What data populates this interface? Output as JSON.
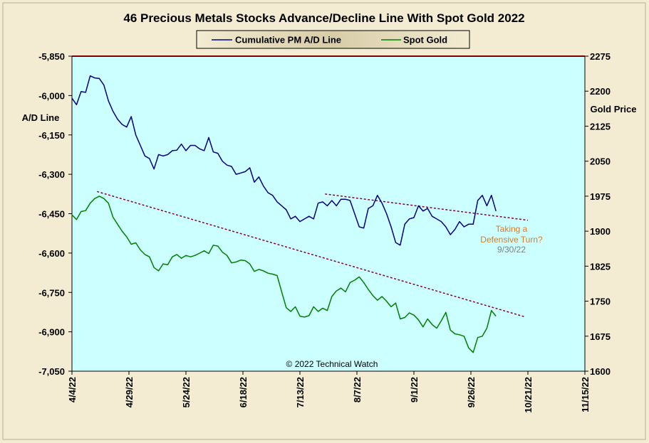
{
  "chart_data": {
    "type": "line",
    "title": "46 Precious Metals Stocks Advance/Decline Line With Spot Gold 2022",
    "ylabel_left": "A/D Line",
    "ylabel_right": "Gold Price",
    "legend": {
      "placement": "top-center",
      "entries": [
        "Cumulative PM A/D Line",
        "Spot Gold"
      ]
    },
    "x_ticks": [
      "4/4/22",
      "4/29/22",
      "5/24/22",
      "6/18/22",
      "7/13/22",
      "8/7/22",
      "9/1/22",
      "9/26/22",
      "10/21/22",
      "11/15/22"
    ],
    "x_range": [
      "4/4/22",
      "11/15/22"
    ],
    "y_left": {
      "min": -7050,
      "max": -5850,
      "ticks": [
        -5850,
        -6000,
        -6150,
        -6300,
        -6450,
        -6600,
        -6750,
        -6900,
        -7050
      ],
      "tick_labels": [
        "-5,850",
        "-6,000",
        "-6,150",
        "-6,300",
        "-6,450",
        "-6,600",
        "-6,750",
        "-6,900",
        "-7,050"
      ]
    },
    "y_right": {
      "min": 1600,
      "max": 2275,
      "ticks": [
        1600,
        1675,
        1750,
        1825,
        1900,
        1975,
        2050,
        2125,
        2200,
        2275
      ]
    },
    "grid": false,
    "colors": {
      "plot_bg": "#ccffff",
      "ad_line": "#000080",
      "gold": "#008000",
      "trend": "#800040",
      "annotation": "#e07820",
      "annotation_date": "#808080",
      "top_line": "#800000"
    },
    "series": [
      {
        "name": "Cumulative PM A/D Line",
        "axis": "left",
        "x": [
          "4/4/22",
          "4/6/22",
          "4/8/22",
          "4/10/22",
          "4/12/22",
          "4/14/22",
          "4/16/22",
          "4/18/22",
          "4/20/22",
          "4/22/22",
          "4/24/22",
          "4/26/22",
          "4/28/22",
          "4/30/22",
          "5/2/22",
          "5/4/22",
          "5/6/22",
          "5/8/22",
          "5/10/22",
          "5/12/22",
          "5/14/22",
          "5/16/22",
          "5/18/22",
          "5/20/22",
          "5/22/22",
          "5/24/22",
          "5/26/22",
          "5/28/22",
          "5/30/22",
          "6/1/22",
          "6/3/22",
          "6/5/22",
          "6/7/22",
          "6/9/22",
          "6/11/22",
          "6/13/22",
          "6/15/22",
          "6/17/22",
          "6/19/22",
          "6/21/22",
          "6/23/22",
          "6/25/22",
          "6/27/22",
          "6/29/22",
          "7/1/22",
          "7/3/22",
          "7/5/22",
          "7/7/22",
          "7/9/22",
          "7/11/22",
          "7/13/22",
          "7/15/22",
          "7/17/22",
          "7/19/22",
          "7/21/22",
          "7/23/22",
          "7/25/22",
          "7/27/22",
          "7/29/22",
          "7/31/22",
          "8/2/22",
          "8/4/22",
          "8/6/22",
          "8/8/22",
          "8/10/22",
          "8/12/22",
          "8/14/22",
          "8/16/22",
          "8/18/22",
          "8/20/22",
          "8/22/22",
          "8/24/22",
          "8/26/22",
          "8/28/22",
          "8/30/22",
          "9/1/22",
          "9/3/22",
          "9/5/22",
          "9/7/22",
          "9/9/22",
          "9/11/22",
          "9/13/22",
          "9/15/22",
          "9/17/22",
          "9/19/22",
          "9/21/22",
          "9/23/22",
          "9/25/22",
          "9/27/22",
          "9/29/22",
          "10/1/22",
          "10/3/22",
          "10/5/22",
          "10/7/22"
        ],
        "values": [
          -6010,
          -6035,
          -5985,
          -5988,
          -5925,
          -5933,
          -5935,
          -5960,
          -6020,
          -6060,
          -6090,
          -6110,
          -6120,
          -6080,
          -6150,
          -6190,
          -6230,
          -6240,
          -6280,
          -6225,
          -6230,
          -6225,
          -6210,
          -6208,
          -6185,
          -6210,
          -6190,
          -6190,
          -6203,
          -6210,
          -6160,
          -6215,
          -6220,
          -6250,
          -6265,
          -6270,
          -6300,
          -6295,
          -6290,
          -6275,
          -6330,
          -6310,
          -6345,
          -6370,
          -6380,
          -6405,
          -6420,
          -6435,
          -6470,
          -6460,
          -6480,
          -6470,
          -6460,
          -6470,
          -6410,
          -6405,
          -6420,
          -6400,
          -6420,
          -6395,
          -6395,
          -6400,
          -6450,
          -6500,
          -6505,
          -6430,
          -6420,
          -6380,
          -6410,
          -6450,
          -6500,
          -6560,
          -6570,
          -6490,
          -6470,
          -6465,
          -6420,
          -6440,
          -6430,
          -6460,
          -6470,
          -6480,
          -6500,
          -6530,
          -6510,
          -6480,
          -6500,
          -6490,
          -6490,
          -6400,
          -6380,
          -6420,
          -6380,
          -6440
        ]
      },
      {
        "name": "Spot Gold",
        "axis": "right",
        "x": [
          "4/4/22",
          "4/6/22",
          "4/8/22",
          "4/10/22",
          "4/12/22",
          "4/14/22",
          "4/16/22",
          "4/18/22",
          "4/20/22",
          "4/22/22",
          "4/24/22",
          "4/26/22",
          "4/28/22",
          "4/30/22",
          "5/2/22",
          "5/4/22",
          "5/6/22",
          "5/8/22",
          "5/10/22",
          "5/12/22",
          "5/14/22",
          "5/16/22",
          "5/18/22",
          "5/20/22",
          "5/22/22",
          "5/24/22",
          "5/26/22",
          "5/28/22",
          "5/30/22",
          "6/1/22",
          "6/3/22",
          "6/5/22",
          "6/7/22",
          "6/9/22",
          "6/11/22",
          "6/13/22",
          "6/15/22",
          "6/17/22",
          "6/19/22",
          "6/21/22",
          "6/23/22",
          "6/25/22",
          "6/27/22",
          "6/29/22",
          "7/1/22",
          "7/3/22",
          "7/5/22",
          "7/7/22",
          "7/9/22",
          "7/11/22",
          "7/13/22",
          "7/15/22",
          "7/17/22",
          "7/19/22",
          "7/21/22",
          "7/23/22",
          "7/25/22",
          "7/27/22",
          "7/29/22",
          "7/31/22",
          "8/2/22",
          "8/4/22",
          "8/6/22",
          "8/8/22",
          "8/10/22",
          "8/12/22",
          "8/14/22",
          "8/16/22",
          "8/18/22",
          "8/20/22",
          "8/22/22",
          "8/24/22",
          "8/26/22",
          "8/28/22",
          "8/30/22",
          "9/1/22",
          "9/3/22",
          "9/5/22",
          "9/7/22",
          "9/9/22",
          "9/11/22",
          "9/13/22",
          "9/15/22",
          "9/17/22",
          "9/19/22",
          "9/21/22",
          "9/23/22",
          "9/25/22",
          "9/27/22",
          "9/29/22",
          "10/1/22",
          "10/3/22",
          "10/5/22",
          "10/7/22"
        ],
        "values": [
          1935,
          1925,
          1942,
          1944,
          1960,
          1970,
          1975,
          1970,
          1960,
          1930,
          1915,
          1900,
          1888,
          1872,
          1875,
          1860,
          1850,
          1845,
          1822,
          1815,
          1830,
          1828,
          1845,
          1850,
          1842,
          1848,
          1845,
          1848,
          1853,
          1858,
          1852,
          1870,
          1868,
          1855,
          1848,
          1832,
          1834,
          1838,
          1837,
          1830,
          1814,
          1818,
          1815,
          1810,
          1808,
          1805,
          1770,
          1736,
          1728,
          1738,
          1718,
          1716,
          1719,
          1738,
          1728,
          1735,
          1730,
          1760,
          1772,
          1778,
          1770,
          1790,
          1795,
          1802,
          1790,
          1775,
          1762,
          1752,
          1760,
          1750,
          1738,
          1746,
          1712,
          1715,
          1725,
          1720,
          1710,
          1695,
          1712,
          1700,
          1692,
          1708,
          1726,
          1688,
          1680,
          1678,
          1675,
          1650,
          1640,
          1672,
          1675,
          1692,
          1730,
          1718
        ]
      }
    ],
    "trendlines": [
      {
        "series": "Spot Gold",
        "from": {
          "x": "4/15/22",
          "y": 1985
        },
        "to": {
          "x": "10/20/22",
          "y": 1716
        }
      },
      {
        "series": "Cumulative PM A/D Line",
        "from": {
          "x": "7/24/22",
          "y": -6375
        },
        "to": {
          "x": "10/21/22",
          "y": -6475
        }
      }
    ],
    "annotations": {
      "turn_label_1": "Taking  a",
      "turn_label_2": "Defensive  Turn?",
      "turn_date": "9/30/22"
    },
    "copyright": "© 2022 Technical Watch"
  }
}
